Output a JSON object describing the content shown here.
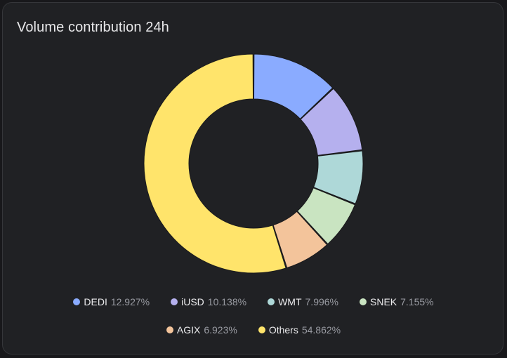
{
  "card": {
    "title": "Volume contribution 24h"
  },
  "chart_data": {
    "type": "pie",
    "variant": "donut",
    "title": "Volume contribution 24h",
    "legend_position": "bottom",
    "categories": [
      "DEDI",
      "iUSD",
      "WMT",
      "SNEK",
      "AGIX",
      "Others"
    ],
    "values": [
      12.927,
      10.138,
      7.996,
      7.155,
      6.923,
      54.862
    ],
    "unit": "%",
    "value_labels": [
      "12.927%",
      "10.138%",
      "7.996%",
      "7.155%",
      "6.923%",
      "54.862%"
    ],
    "colors": [
      "#8aabff",
      "#b5b0ee",
      "#aed8d8",
      "#c9e4c1",
      "#f3c49b",
      "#ffe46b"
    ]
  }
}
